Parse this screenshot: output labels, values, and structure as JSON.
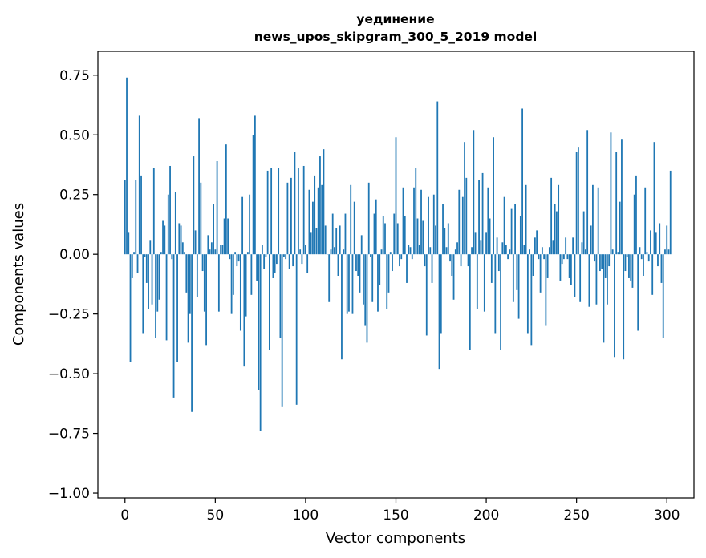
{
  "chart_data": {
    "type": "bar",
    "title": "уединение",
    "subtitle": "news_upos_skipgram_300_5_2019 model",
    "xlabel": "Vector components",
    "ylabel": "Components values",
    "xlim": [
      -15,
      315
    ],
    "ylim": [
      -1.02,
      0.85
    ],
    "xticks": [
      0,
      50,
      100,
      150,
      200,
      250,
      300
    ],
    "yticks": [
      -1.0,
      -0.75,
      -0.5,
      -0.25,
      0.0,
      0.25,
      0.5,
      0.75
    ],
    "xtick_labels": [
      "0",
      "50",
      "100",
      "150",
      "200",
      "250",
      "300"
    ],
    "ytick_labels": [
      "−1.00",
      "−0.75",
      "−0.50",
      "−0.25",
      "0.00",
      "0.25",
      "0.50",
      "0.75"
    ],
    "grid": false,
    "bar_color": "#1f77b4",
    "values": [
      0.31,
      0.74,
      0.09,
      -0.45,
      -0.1,
      0.01,
      0.31,
      -0.08,
      0.58,
      0.33,
      -0.33,
      -0.01,
      -0.12,
      -0.23,
      0.06,
      -0.21,
      0.36,
      -0.35,
      -0.24,
      -0.19,
      0.01,
      0.14,
      0.12,
      -0.36,
      0.25,
      0.37,
      -0.02,
      -0.6,
      0.26,
      -0.45,
      0.13,
      0.12,
      0.05,
      0.01,
      -0.16,
      -0.37,
      -0.25,
      -0.66,
      0.41,
      0.1,
      -0.18,
      0.57,
      0.3,
      -0.07,
      -0.24,
      -0.38,
      0.08,
      0.02,
      0.05,
      0.21,
      0.02,
      0.39,
      -0.24,
      0.04,
      0.04,
      0.15,
      0.46,
      0.15,
      -0.02,
      -0.25,
      -0.17,
      0.01,
      -0.05,
      -0.03,
      -0.32,
      0.24,
      -0.47,
      -0.26,
      0.01,
      0.25,
      -0.17,
      0.5,
      0.58,
      -0.11,
      -0.57,
      -0.74,
      0.04,
      -0.06,
      -0.01,
      0.35,
      -0.4,
      0.36,
      -0.1,
      -0.08,
      -0.04,
      0.36,
      -0.35,
      -0.64,
      -0.01,
      -0.02,
      0.3,
      -0.06,
      0.32,
      -0.05,
      0.43,
      -0.63,
      0.36,
      0.02,
      -0.04,
      0.37,
      0.04,
      -0.08,
      0.27,
      0.09,
      0.22,
      0.33,
      0.11,
      0.28,
      0.41,
      0.29,
      0.44,
      0.12,
      0.0,
      -0.2,
      0.02,
      0.17,
      0.03,
      0.11,
      -0.09,
      0.12,
      -0.44,
      0.02,
      0.17,
      -0.25,
      -0.24,
      0.29,
      -0.25,
      0.22,
      -0.07,
      -0.09,
      -0.16,
      0.08,
      -0.21,
      -0.3,
      -0.37,
      0.3,
      -0.01,
      -0.2,
      0.17,
      0.23,
      -0.24,
      -0.13,
      0.02,
      0.16,
      0.13,
      -0.23,
      -0.16,
      0.01,
      -0.07,
      0.17,
      0.49,
      0.13,
      -0.05,
      -0.02,
      0.28,
      0.16,
      -0.12,
      0.04,
      0.03,
      -0.02,
      0.28,
      0.36,
      0.15,
      0.04,
      0.27,
      0.14,
      -0.05,
      -0.34,
      0.24,
      0.03,
      -0.12,
      0.25,
      0.12,
      0.64,
      -0.48,
      -0.33,
      0.21,
      0.11,
      0.03,
      0.13,
      -0.03,
      -0.09,
      -0.19,
      0.02,
      0.05,
      0.27,
      -0.05,
      0.24,
      0.47,
      0.32,
      -0.05,
      -0.4,
      0.03,
      0.52,
      0.09,
      -0.23,
      0.31,
      0.06,
      0.34,
      -0.24,
      0.09,
      0.28,
      0.15,
      -0.12,
      0.49,
      -0.33,
      0.07,
      -0.07,
      -0.4,
      0.05,
      0.24,
      0.04,
      -0.02,
      0.02,
      0.19,
      -0.2,
      0.21,
      -0.15,
      -0.27,
      0.16,
      0.61,
      0.04,
      0.29,
      -0.33,
      0.02,
      -0.38,
      -0.09,
      0.07,
      0.1,
      -0.02,
      -0.16,
      0.03,
      -0.02,
      -0.3,
      -0.1,
      0.03,
      0.32,
      0.06,
      0.21,
      0.18,
      0.29,
      -0.11,
      -0.04,
      -0.02,
      0.07,
      -0.02,
      -0.1,
      -0.13,
      0.07,
      -0.18,
      0.43,
      0.45,
      -0.2,
      0.05,
      0.18,
      0.02,
      0.52,
      -0.22,
      0.12,
      0.29,
      -0.03,
      -0.21,
      0.28,
      -0.07,
      -0.06,
      -0.37,
      -0.1,
      -0.21,
      -0.05,
      0.51,
      0.02,
      -0.43,
      0.43,
      0.01,
      0.22,
      0.48,
      -0.44,
      -0.07,
      -0.01,
      -0.1,
      -0.11,
      -0.14,
      0.25,
      0.33,
      -0.32,
      0.03,
      -0.02,
      -0.09,
      0.28,
      0.01,
      -0.03,
      0.1,
      -0.17,
      0.47,
      0.09,
      -0.05,
      0.13,
      -0.12,
      -0.35,
      0.02,
      0.12,
      0.02,
      0.35
    ]
  }
}
